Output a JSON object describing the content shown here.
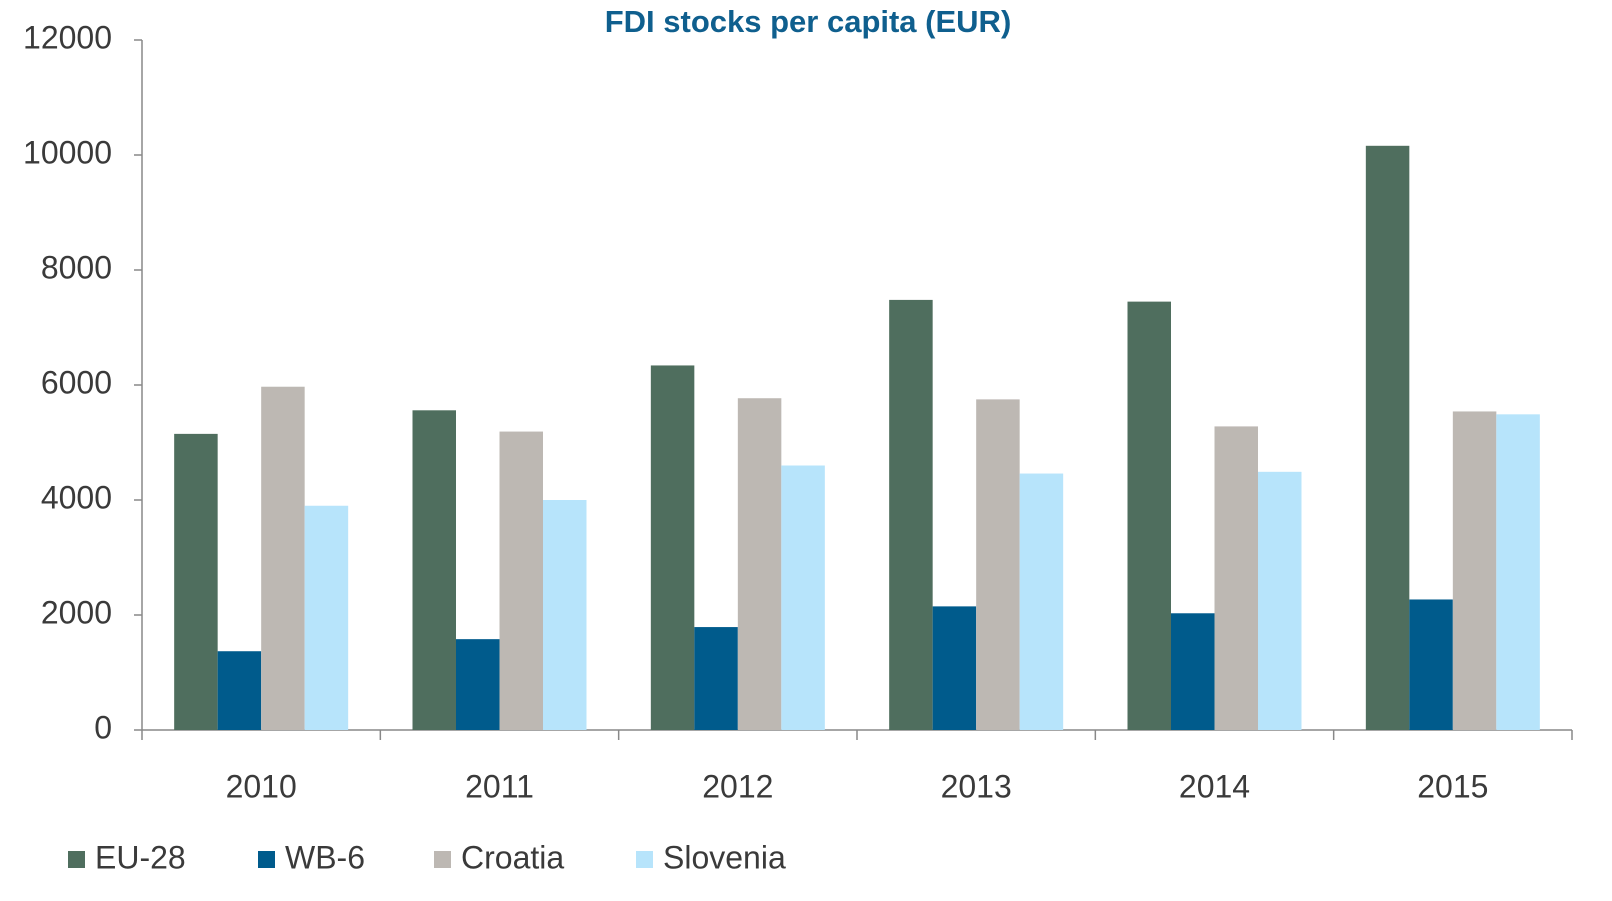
{
  "chart_data": {
    "type": "bar",
    "title": "FDI stocks per capita (EUR)",
    "categories": [
      "2010",
      "2011",
      "2012",
      "2013",
      "2014",
      "2015"
    ],
    "series": [
      {
        "name": "EU-28",
        "color": "#4f6e5e",
        "values": [
          5150,
          5560,
          6340,
          7480,
          7450,
          10160
        ]
      },
      {
        "name": "WB-6",
        "color": "#005b8c",
        "values": [
          1370,
          1580,
          1790,
          2150,
          2030,
          2270
        ]
      },
      {
        "name": "Croatia",
        "color": "#bdb8b3",
        "values": [
          5970,
          5190,
          5770,
          5750,
          5280,
          5540
        ]
      },
      {
        "name": "Slovenia",
        "color": "#b7e4fb",
        "values": [
          3900,
          4000,
          4600,
          4460,
          4490,
          5490
        ]
      }
    ],
    "ylim": [
      0,
      12000
    ],
    "yticks": [
      0,
      2000,
      4000,
      6000,
      8000,
      10000,
      12000
    ],
    "grid": false,
    "legend": "bottom"
  }
}
